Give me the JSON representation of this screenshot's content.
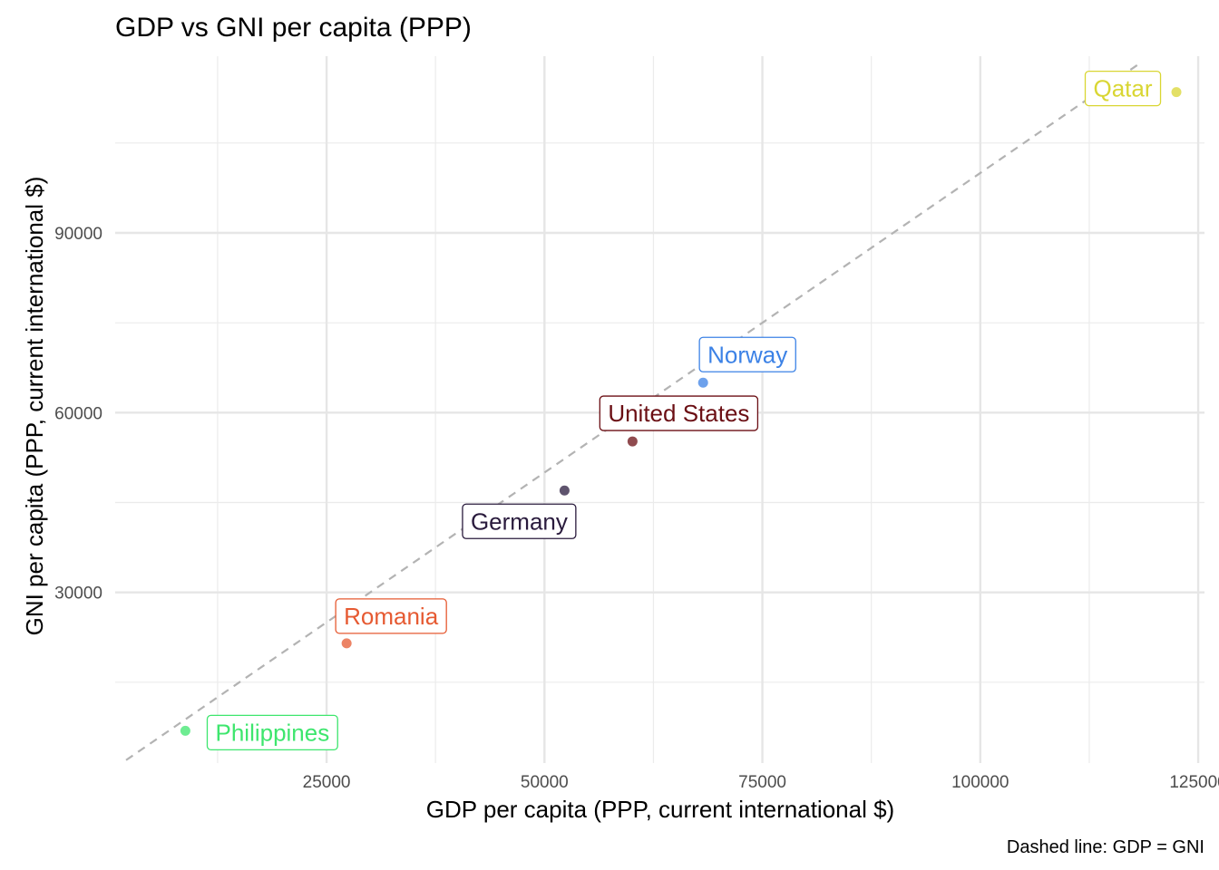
{
  "chart_data": {
    "type": "scatter",
    "title": "GDP vs GNI per capita (PPP)",
    "xlabel": "GDP per capita (PPP, current international $)",
    "ylabel": "GNI per capita (PPP, current international $)",
    "caption": "Dashed line: GDP = GNI",
    "xlim": [
      0,
      125000
    ],
    "ylim": [
      0,
      120000
    ],
    "x_ticks": [
      25000,
      50000,
      75000,
      100000,
      125000
    ],
    "x_tick_labels": [
      "25000",
      "50000",
      "75000",
      "100000",
      "125000"
    ],
    "y_ticks": [
      30000,
      60000,
      90000
    ],
    "y_tick_labels": [
      "30000",
      "60000",
      "90000"
    ],
    "grid": true,
    "reference_line": {
      "style": "dashed",
      "color": "#b3b3b3",
      "from": 2000,
      "to": 118000
    },
    "points": [
      {
        "name": "Philippines",
        "x": 8800,
        "y": 6900,
        "color": "#3ee66e"
      },
      {
        "name": "Romania",
        "x": 27300,
        "y": 21500,
        "color": "#e65a32"
      },
      {
        "name": "Germany",
        "x": 52300,
        "y": 47000,
        "color": "#2a1b3d"
      },
      {
        "name": "United States",
        "x": 60100,
        "y": 55200,
        "color": "#6b0f14"
      },
      {
        "name": "Norway",
        "x": 68200,
        "y": 65000,
        "color": "#3c82e6"
      },
      {
        "name": "Qatar",
        "x": 122500,
        "y": 113500,
        "color": "#d9d633"
      }
    ]
  }
}
